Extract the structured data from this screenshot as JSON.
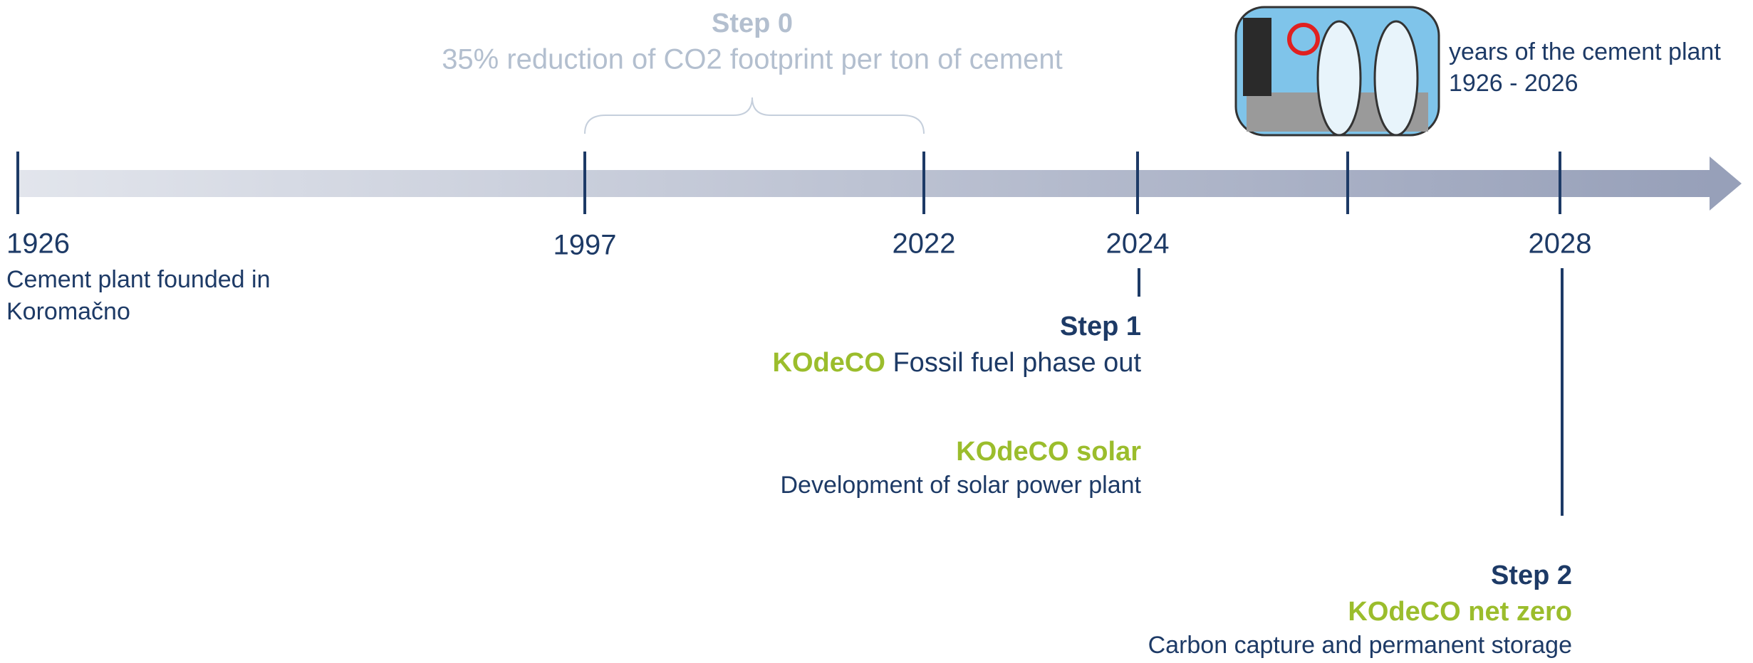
{
  "step0": {
    "title": "Step 0",
    "text": "35% reduction of CO2 footprint per ton of cement"
  },
  "anniversary": {
    "text": "years of the cement plant",
    "period": "1926 - 2026"
  },
  "timeline": {
    "years": [
      "1926",
      "1997",
      "2022",
      "2024",
      "2028"
    ]
  },
  "founding": {
    "lines": [
      "Cement plant founded in",
      "Koromačno"
    ]
  },
  "step1": {
    "title": "Step 1",
    "brand": "KOdeCO",
    "text": "Fossil fuel phase out",
    "solar_title": "KOdeCO solar",
    "solar_text": "Development of solar power plant"
  },
  "step2": {
    "title": "Step 2",
    "brand_title": "KOdeCO net zero",
    "text": "Carbon capture and permanent storage"
  }
}
